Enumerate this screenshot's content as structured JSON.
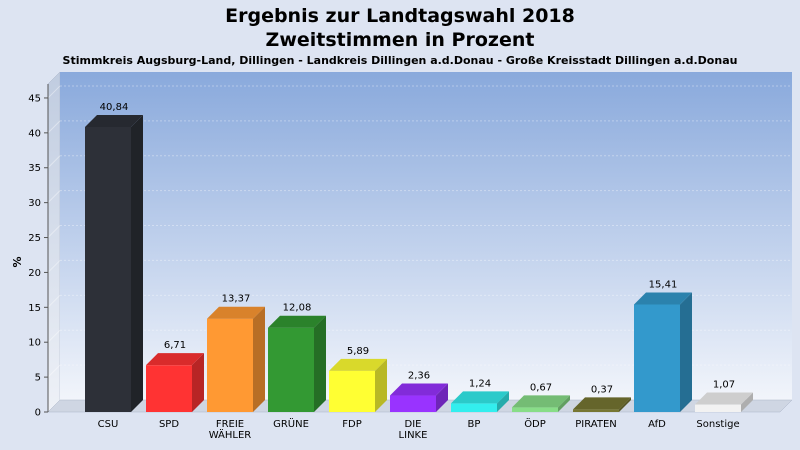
{
  "chart_data": {
    "type": "bar",
    "title_line1": "Ergebnis zur Landtagswahl 2018",
    "title_line2": "Zweitstimmen in Prozent",
    "subtitle": "Stimmkreis Augsburg-Land, Dillingen - Landkreis Dillingen a.d.Donau - Große Kreisstadt Dillingen a.d.Donau",
    "ylabel": "%",
    "xlabel": "",
    "ylim": [
      0,
      47
    ],
    "yticks": [
      0,
      5,
      10,
      15,
      20,
      25,
      30,
      35,
      40,
      45
    ],
    "grid": true,
    "categories": [
      "CSU",
      "SPD",
      "FREIE WÄHLER",
      "GRÜNE",
      "FDP",
      "DIE LINKE",
      "BP",
      "ÖDP",
      "PIRATEN",
      "AfD",
      "Sonstige"
    ],
    "category_lines": [
      [
        "CSU"
      ],
      [
        "SPD"
      ],
      [
        "FREIE",
        "WÄHLER"
      ],
      [
        "GRÜNE"
      ],
      [
        "FDP"
      ],
      [
        "DIE",
        "LINKE"
      ],
      [
        "BP"
      ],
      [
        "ÖDP"
      ],
      [
        "PIRATEN"
      ],
      [
        "AfD"
      ],
      [
        "Sonstige"
      ]
    ],
    "values": [
      40.84,
      6.71,
      13.37,
      12.08,
      5.89,
      2.36,
      1.24,
      0.67,
      0.37,
      15.41,
      1.07
    ],
    "value_labels": [
      "40,84",
      "6,71",
      "13,37",
      "12,08",
      "5,89",
      "2,36",
      "1,24",
      "0,67",
      "0,37",
      "15,41",
      "1,07"
    ],
    "colors": [
      "#2d3038",
      "#ff3333",
      "#ff9933",
      "#339933",
      "#ffff33",
      "#9933ff",
      "#33eeee",
      "#88dd88",
      "#777733",
      "#3399cc",
      "#f2f2f2"
    ]
  }
}
